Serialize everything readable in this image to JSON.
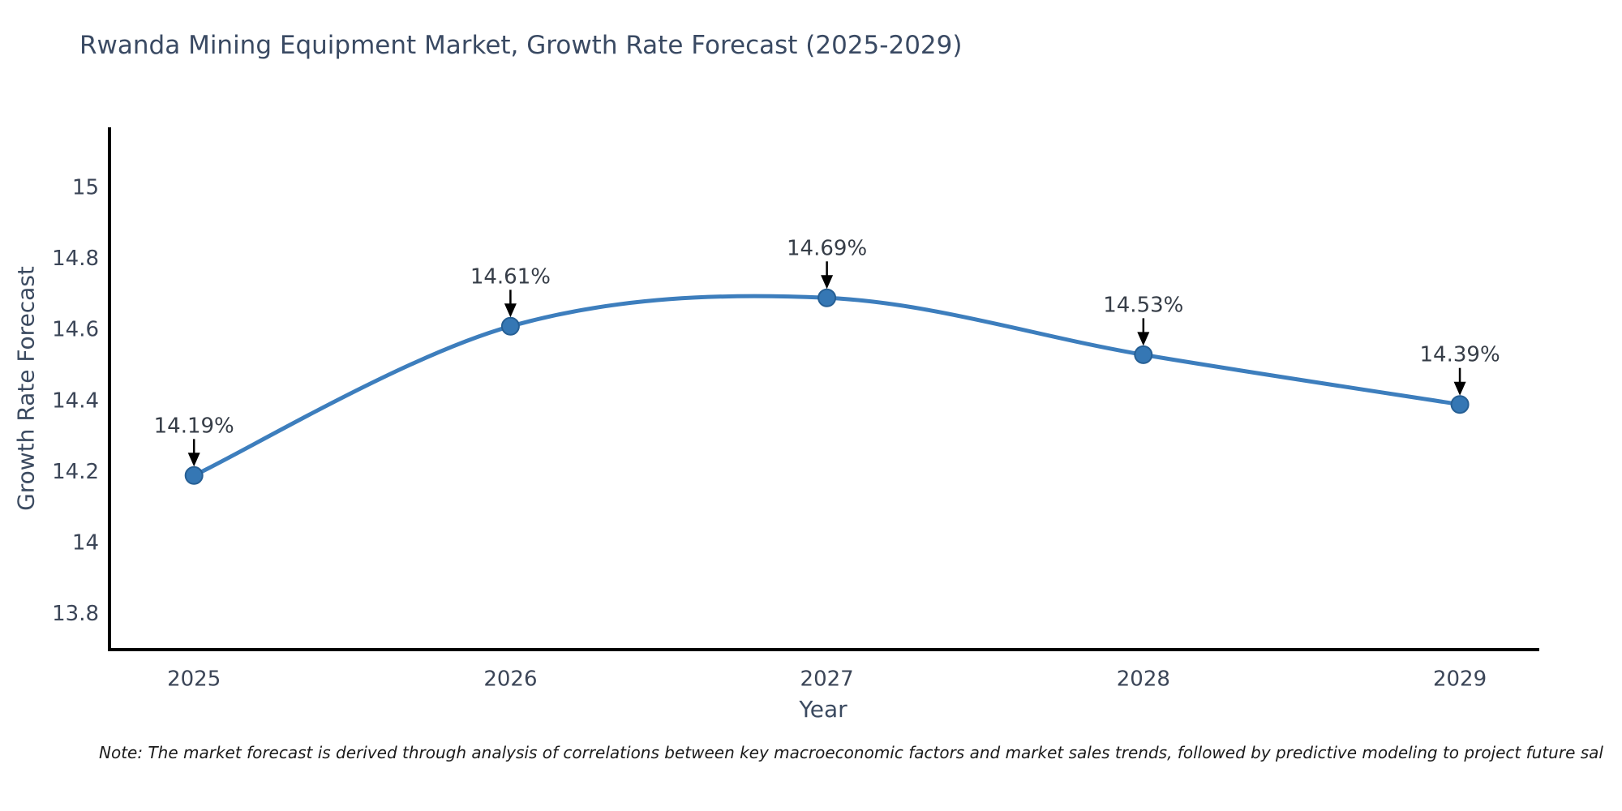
{
  "chart_data": {
    "type": "line",
    "title": "Rwanda Mining Equipment Market, Growth Rate Forecast (2025-2029)",
    "xlabel": "Year",
    "ylabel": "Growth Rate Forecast",
    "categories": [
      "2025",
      "2026",
      "2027",
      "2028",
      "2029"
    ],
    "x": [
      2025,
      2026,
      2027,
      2028,
      2029
    ],
    "values": [
      14.19,
      14.61,
      14.69,
      14.53,
      14.39
    ],
    "unit": "%",
    "annotations": [
      "14.19%",
      "14.61%",
      "14.69%",
      "14.53%",
      "14.39%"
    ],
    "y_ticks": [
      {
        "value": 15,
        "label": "15"
      },
      {
        "value": 14.8,
        "label": "14.8"
      },
      {
        "value": 14.6,
        "label": "14.6"
      },
      {
        "value": 14.4,
        "label": "14.4"
      },
      {
        "value": 14.2,
        "label": "14.2"
      },
      {
        "value": 14,
        "label": "14"
      },
      {
        "value": 13.8,
        "label": "13.8"
      }
    ],
    "ylim": [
      13.7,
      15.17
    ],
    "xlim": [
      2024.733,
      2029.251
    ],
    "grid": false,
    "legend": null,
    "line": {
      "color": "#3d7ebd",
      "width": 5,
      "smooth": true
    },
    "marker": {
      "color": "#3577b4",
      "edge_color": "#265f94",
      "radius": 10.5
    },
    "arrow_color": "#000000",
    "axis_color": "#000000",
    "tick_color": "#3b4557",
    "annotation_color": "#363d47"
  },
  "note": {
    "text": "Note: The market forecast is derived through analysis of correlations between key macroeconomic factors and market sales trends, followed by predictive modeling to project future sal"
  }
}
